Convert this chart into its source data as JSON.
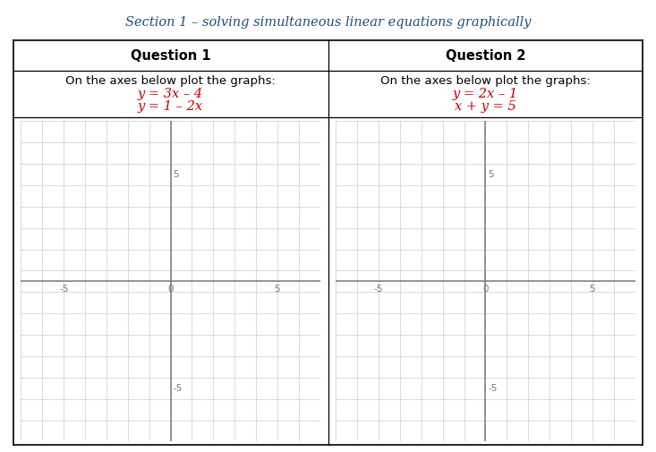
{
  "title": "Section 1 – solving simultaneous linear equations graphically",
  "title_color": "#1F4E79",
  "title_fontsize": 10.5,
  "q1_header": "Question 1",
  "q2_header": "Question 2",
  "q1_instruction": "On the axes below plot the graphs:",
  "q2_instruction": "On the axes below plot the graphs:",
  "q1_eq1": "y = 3x – 4",
  "q1_eq2": "y = 1 – 2x",
  "q2_eq1": "y = 2x – 1",
  "q2_eq2": "x + y = 5",
  "eq_color": "#C00000",
  "axis_color": "#777777",
  "grid_color": "#CCCCCC",
  "tick_label_color": "#777777",
  "background_color": "#FFFFFF",
  "border_color": "#000000",
  "xlim": [
    -7,
    7
  ],
  "ylim": [
    -7.5,
    7.5
  ],
  "xtick_labels": [
    [
      -5,
      "-5"
    ],
    [
      0,
      "0"
    ],
    [
      5,
      "5"
    ]
  ],
  "ytick_labels": [
    [
      5,
      "5"
    ],
    [
      -5,
      "-5"
    ]
  ],
  "grid_major_step": 1
}
